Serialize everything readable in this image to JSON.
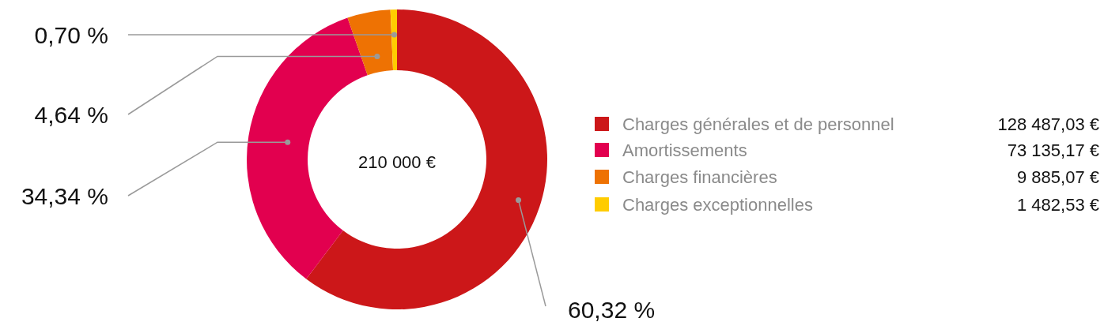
{
  "chart_data": {
    "type": "donut",
    "categories": [
      "Charges générales et de personnel",
      "Amortissements",
      "Charges financières",
      "Charges exceptionnelles"
    ],
    "values": [
      60.32,
      34.34,
      4.64,
      0.7
    ],
    "colors": [
      "#cc1719",
      "#e2004f",
      "#ee7203",
      "#ffcc00"
    ],
    "value_labels": [
      "60,32 %",
      "34,34 %",
      "4,64 %",
      "0,70 %"
    ],
    "annotations": [
      "210 000 €",
      "128 487,03 €",
      "73 135,17 €",
      "9 885,07 €",
      "1 482,53 €"
    ],
    "legend": "right"
  }
}
